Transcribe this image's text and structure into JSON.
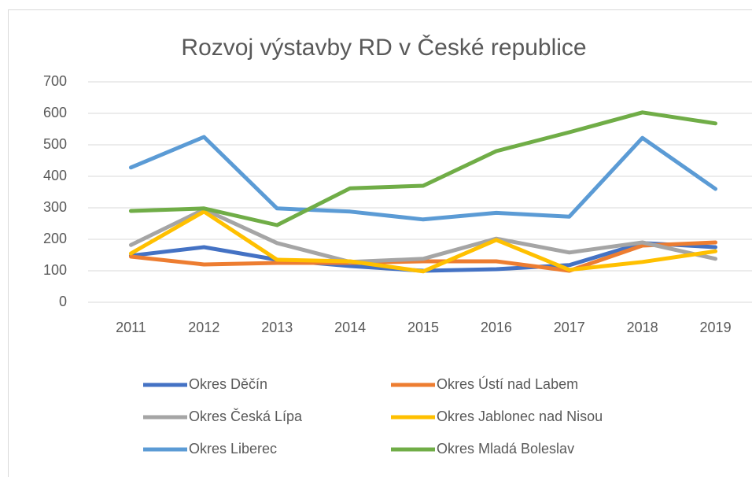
{
  "chart_data": {
    "type": "line",
    "title": "Rozvoj výstavby RD v České republice",
    "categories": [
      "2011",
      "2012",
      "2013",
      "2014",
      "2015",
      "2016",
      "2017",
      "2018",
      "2019"
    ],
    "series": [
      {
        "name": "Okres Děčín",
        "color": "#4472c4",
        "values": [
          148,
          175,
          135,
          115,
          100,
          105,
          118,
          188,
          175
        ]
      },
      {
        "name": "Okres Ústí nad Labem",
        "color": "#ed7d31",
        "values": [
          145,
          120,
          125,
          125,
          130,
          130,
          100,
          180,
          190
        ]
      },
      {
        "name": "Okres Česká Lípa",
        "color": "#a5a5a5",
        "values": [
          182,
          295,
          188,
          128,
          138,
          202,
          158,
          190,
          138
        ]
      },
      {
        "name": "Okres Jablonec nad Nisou",
        "color": "#ffc000",
        "values": [
          155,
          288,
          135,
          130,
          98,
          198,
          103,
          128,
          162
        ]
      },
      {
        "name": "Okres Liberec",
        "color": "#5b9bd5",
        "values": [
          428,
          525,
          298,
          288,
          263,
          284,
          272,
          522,
          360
        ]
      },
      {
        "name": "Okres Mladá Boleslav",
        "color": "#70ad47",
        "values": [
          290,
          298,
          245,
          362,
          370,
          480,
          540,
          603,
          568
        ]
      }
    ],
    "ylim": [
      0,
      700
    ],
    "yticks": [
      0,
      100,
      200,
      300,
      400,
      500,
      600,
      700
    ],
    "grid": true,
    "legend": "bottom"
  }
}
